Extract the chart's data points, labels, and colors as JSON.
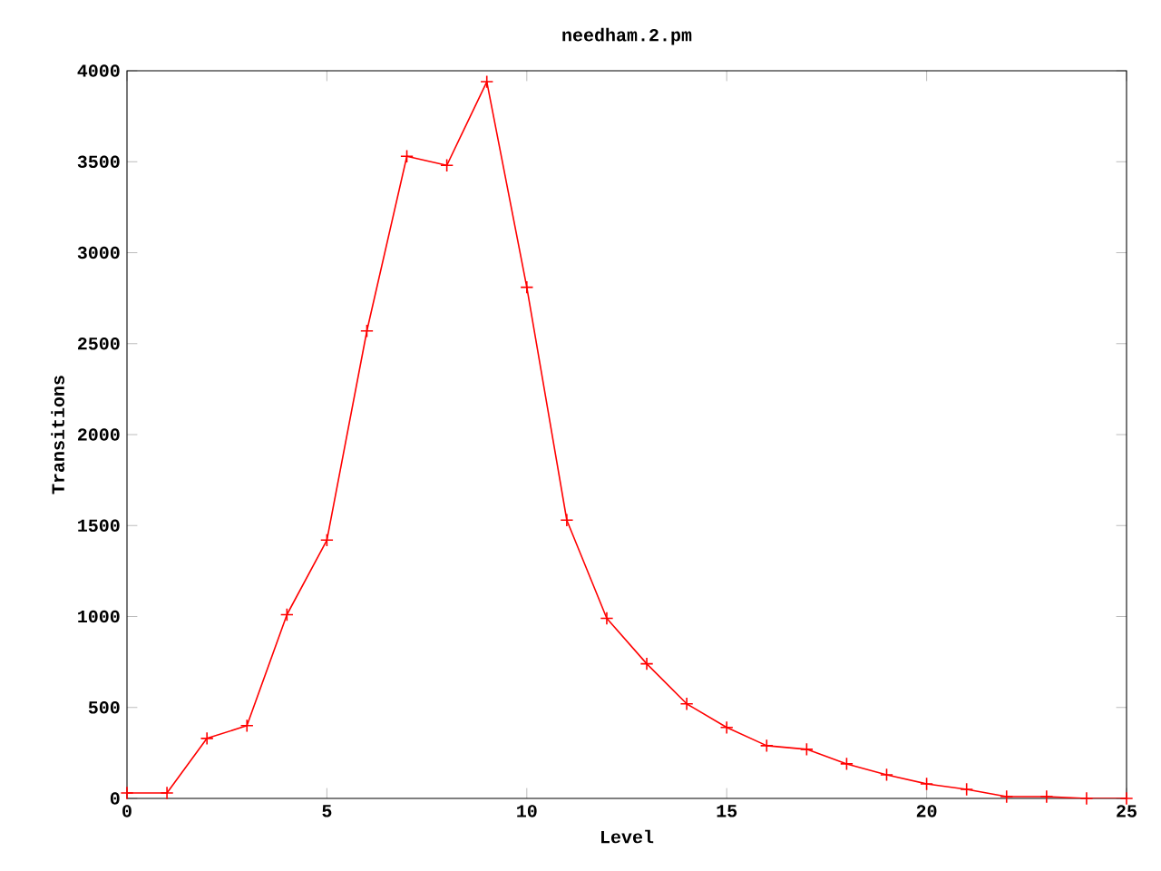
{
  "chart_data": {
    "type": "line",
    "title": "needham.2.pm",
    "xlabel": "Level",
    "ylabel": "Transitions",
    "x": [
      0,
      1,
      2,
      3,
      4,
      5,
      6,
      7,
      8,
      9,
      10,
      11,
      12,
      13,
      14,
      15,
      16,
      17,
      18,
      19,
      20,
      21,
      22,
      23,
      24,
      25
    ],
    "series": [
      {
        "color": "#ff0000",
        "values": [
          30,
          30,
          330,
          400,
          1010,
          1420,
          2570,
          3530,
          3480,
          3940,
          2810,
          1530,
          990,
          740,
          520,
          390,
          290,
          270,
          190,
          130,
          80,
          50,
          10,
          10,
          0,
          0
        ]
      }
    ],
    "xlim": [
      0,
      25
    ],
    "ylim": [
      0,
      4000
    ],
    "xticks": [
      0,
      5,
      10,
      15,
      20,
      25
    ],
    "yticks": [
      0,
      500,
      1000,
      1500,
      2000,
      2500,
      3000,
      3500,
      4000
    ],
    "marker": "cross"
  }
}
